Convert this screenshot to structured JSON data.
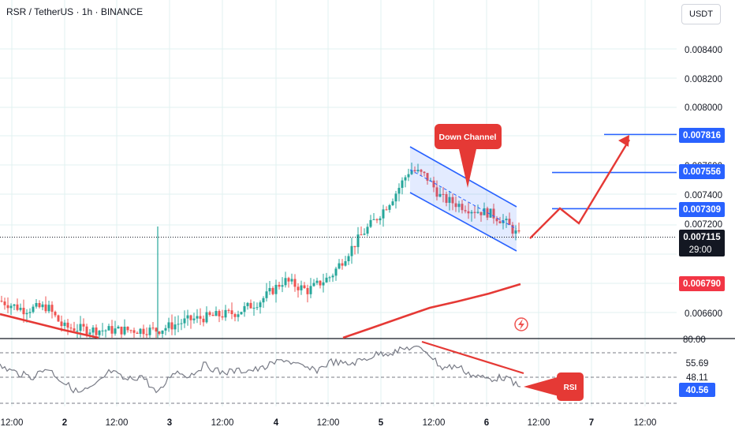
{
  "header": {
    "symbol": "RSR / TetherUS · 1h · BINANCE",
    "currency": "USDT"
  },
  "price_axis": {
    "ticks": [
      "0.008400",
      "0.008200",
      "0.008000",
      "0.007600",
      "0.007400",
      "0.007200",
      "0.006600"
    ],
    "labels": [
      {
        "text": "0.007816",
        "color": "#2962ff"
      },
      {
        "text": "0.007556",
        "color": "#2962ff"
      },
      {
        "text": "0.007309",
        "color": "#2962ff"
      },
      {
        "text": "0.007115",
        "color": "#131722"
      },
      {
        "text": "0.006790",
        "color": "#f23645"
      }
    ],
    "countdown": "29:00"
  },
  "rsi_axis": {
    "ticks": [
      "80.00"
    ],
    "labels": [
      {
        "text": "55.69",
        "color": "#ffffff"
      },
      {
        "text": "48.11",
        "color": "#ffffff"
      },
      {
        "text": "40.56",
        "color": "#2962ff"
      }
    ]
  },
  "time_axis": {
    "labels": [
      "12:00",
      "2",
      "12:00",
      "3",
      "12:00",
      "4",
      "12:00",
      "5",
      "12:00",
      "6",
      "12:00",
      "7",
      "12:00"
    ]
  },
  "annotations": {
    "down_channel": "Down Channel",
    "rsi": "RSI"
  },
  "colors": {
    "up": "#26a69a",
    "down": "#ef5350",
    "channel": "#2962ff",
    "ma": "#e53935",
    "background": "#ffffff",
    "grid": "#e0f2f1"
  },
  "chart_data": {
    "type": "candlestick",
    "ylim": [
      0.0065,
      0.0086
    ],
    "channel_levels": [
      0.007816,
      0.007556,
      0.007309
    ],
    "last_price": 0.007115,
    "ma_value": 0.00679,
    "rsi_levels": [
      80,
      55.69,
      48.11,
      40.56
    ]
  }
}
